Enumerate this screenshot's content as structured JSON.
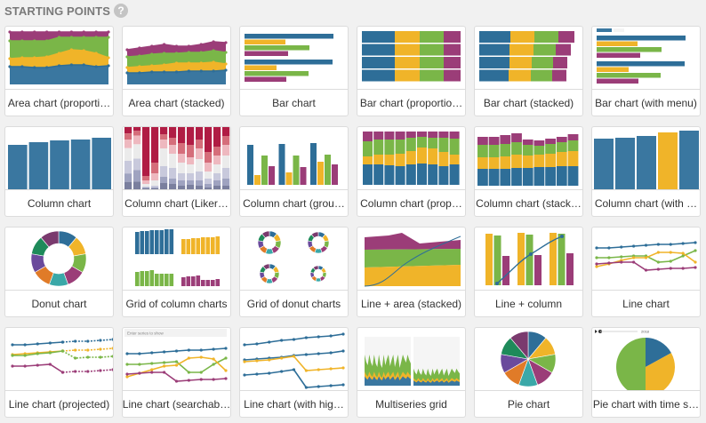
{
  "heading": {
    "title": "STARTING POINTS",
    "help_icon": "?"
  },
  "colors": {
    "blue": "#2e6e98",
    "yellow": "#f0b429",
    "green": "#7ab648",
    "purple": "#9b3d78",
    "steel": "#3a77a0"
  },
  "cards": [
    {
      "label": "Area chart (proporti…",
      "icon": "area-proportional"
    },
    {
      "label": "Area chart (stacked)",
      "icon": "area-stacked"
    },
    {
      "label": "Bar chart",
      "icon": "bar"
    },
    {
      "label": "Bar chart (proportio…",
      "icon": "bar-proportional"
    },
    {
      "label": "Bar chart (stacked)",
      "icon": "bar-stacked"
    },
    {
      "label": "Bar chart (with menu)",
      "icon": "bar-menu"
    },
    {
      "label": "Column chart",
      "icon": "column"
    },
    {
      "label": "Column chart (Liker…",
      "icon": "column-likert"
    },
    {
      "label": "Column chart (grou…",
      "icon": "column-grouped"
    },
    {
      "label": "Column chart (prop…",
      "icon": "column-proportional"
    },
    {
      "label": "Column chart (stack…",
      "icon": "column-stacked"
    },
    {
      "label": "Column chart (with …",
      "icon": "column-highlight"
    },
    {
      "label": "Donut chart",
      "icon": "donut"
    },
    {
      "label": "Grid of column charts",
      "icon": "grid-columns"
    },
    {
      "label": "Grid of donut charts",
      "icon": "grid-donuts"
    },
    {
      "label": "Line + area (stacked)",
      "icon": "line-area"
    },
    {
      "label": "Line + column",
      "icon": "line-column"
    },
    {
      "label": "Line chart",
      "icon": "line"
    },
    {
      "label": "Line chart (projected)",
      "icon": "line-projected"
    },
    {
      "label": "Line chart (searchab…",
      "icon": "line-searchable"
    },
    {
      "label": "Line chart (with hig…",
      "icon": "line-highlight"
    },
    {
      "label": "Multiseries grid",
      "icon": "multiseries"
    },
    {
      "label": "Pie chart",
      "icon": "pie"
    },
    {
      "label": "Pie chart with time s…",
      "icon": "pie-time"
    }
  ]
}
